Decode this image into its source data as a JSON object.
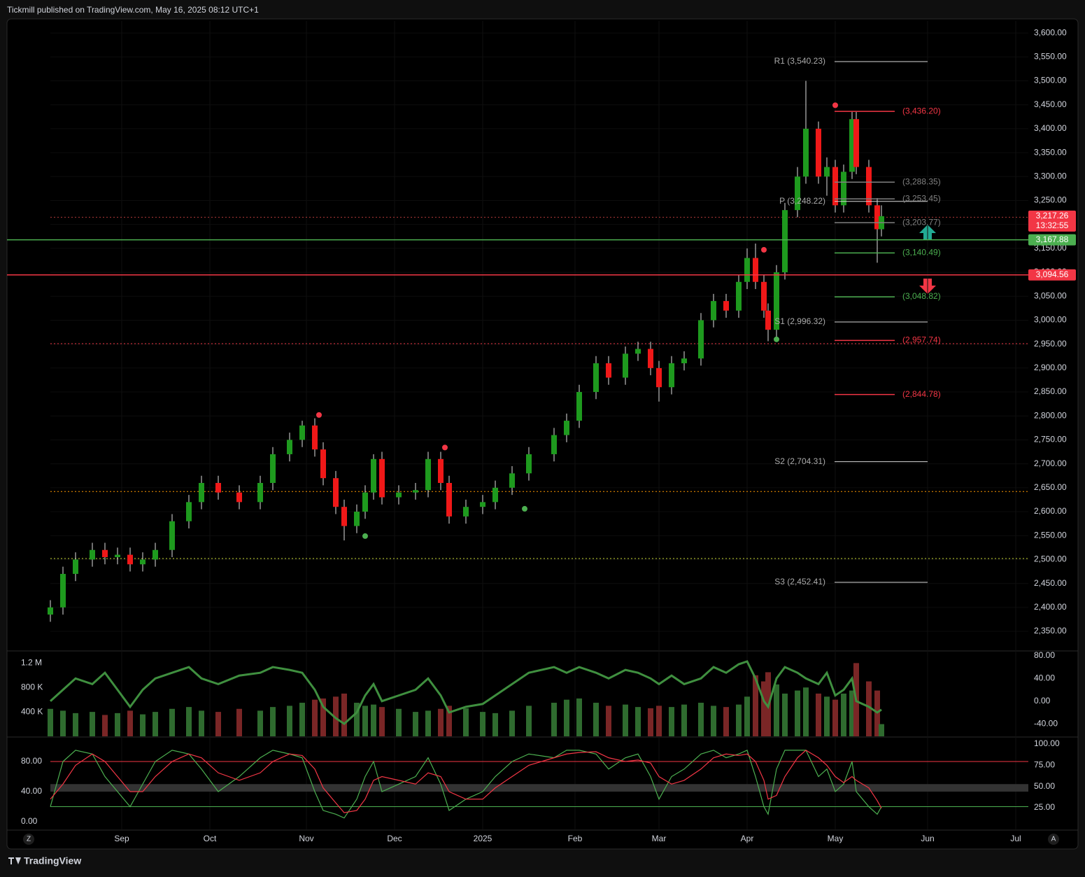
{
  "header": "Tickmill published on TradingView.com, May 16, 2025 08:12 UTC+1",
  "footer": "TradingView",
  "scale_buttons": {
    "left": "Z",
    "right": "A"
  },
  "chart_data": [
    {
      "type": "candlestick",
      "x": [
        0,
        3,
        6,
        10,
        13,
        16,
        19,
        22,
        25,
        29,
        33,
        36,
        40,
        45,
        50,
        53,
        57,
        60,
        63,
        65,
        68,
        70,
        73,
        75,
        77,
        79,
        83,
        87,
        90,
        93,
        95,
        99,
        103,
        106,
        110,
        114,
        120,
        123,
        126,
        130,
        133,
        137,
        140,
        143,
        145,
        148,
        151,
        155,
        158,
        161,
        164,
        166,
        168,
        170,
        171,
        173,
        175,
        178,
        180,
        183,
        185,
        187,
        189,
        191,
        192,
        195,
        197,
        198
      ],
      "open": [
        2385,
        2400,
        2470,
        2500,
        2520,
        2505,
        2510,
        2490,
        2500,
        2520,
        2580,
        2620,
        2660,
        2640,
        2620,
        2660,
        2720,
        2750,
        2780,
        2730,
        2670,
        2610,
        2570,
        2600,
        2640,
        2710,
        2630,
        2640,
        2645,
        2710,
        2660,
        2590,
        2610,
        2620,
        2650,
        2680,
        2720,
        2760,
        2790,
        2850,
        2910,
        2880,
        2930,
        2940,
        2900,
        2860,
        2910,
        2920,
        3000,
        3040,
        3020,
        3080,
        3130,
        3080,
        3020,
        2980,
        3100,
        3230,
        3300,
        3400,
        3300,
        3320,
        3240,
        3310,
        3420,
        3320,
        3240,
        3190
      ],
      "high": [
        2415,
        2485,
        2515,
        2535,
        2535,
        2525,
        2525,
        2515,
        2535,
        2595,
        2635,
        2675,
        2675,
        2655,
        2675,
        2735,
        2765,
        2790,
        2795,
        2745,
        2685,
        2625,
        2615,
        2655,
        2720,
        2725,
        2655,
        2660,
        2725,
        2725,
        2675,
        2625,
        2635,
        2665,
        2695,
        2735,
        2775,
        2805,
        2865,
        2925,
        2925,
        2945,
        2955,
        2955,
        2915,
        2925,
        2935,
        3015,
        3055,
        3055,
        3095,
        3150,
        3160,
        3095,
        3035,
        3115,
        3245,
        3320,
        3500,
        3415,
        3340,
        3335,
        3325,
        3435,
        3435,
        3335,
        3255,
        3240
      ],
      "low": [
        2370,
        2385,
        2455,
        2485,
        2490,
        2490,
        2475,
        2475,
        2485,
        2505,
        2565,
        2605,
        2625,
        2605,
        2605,
        2645,
        2705,
        2735,
        2715,
        2655,
        2595,
        2540,
        2555,
        2585,
        2625,
        2615,
        2615,
        2625,
        2630,
        2645,
        2575,
        2575,
        2595,
        2605,
        2635,
        2665,
        2705,
        2745,
        2775,
        2835,
        2865,
        2865,
        2915,
        2885,
        2830,
        2845,
        2895,
        2905,
        2985,
        3005,
        3005,
        3065,
        3065,
        3005,
        2956,
        2965,
        3085,
        3215,
        3285,
        3285,
        3260,
        3225,
        3225,
        3295,
        3305,
        3225,
        3120,
        3175
      ],
      "close": [
        2400,
        2470,
        2500,
        2520,
        2505,
        2510,
        2490,
        2500,
        2520,
        2580,
        2620,
        2660,
        2640,
        2620,
        2660,
        2720,
        2750,
        2780,
        2730,
        2670,
        2610,
        2570,
        2600,
        2640,
        2710,
        2630,
        2640,
        2645,
        2710,
        2660,
        2590,
        2610,
        2620,
        2650,
        2680,
        2720,
        2760,
        2790,
        2850,
        2910,
        2880,
        2930,
        2940,
        2900,
        2860,
        2910,
        2920,
        3000,
        3040,
        3020,
        3080,
        3130,
        3080,
        3020,
        2980,
        3100,
        3230,
        3300,
        3400,
        3300,
        3320,
        3240,
        3310,
        3420,
        3320,
        3240,
        3190,
        3217.26
      ],
      "up_color": "#1e9a1e",
      "down_color": "#f01818",
      "xlim": [
        0,
        233
      ],
      "xticks": [
        {
          "value": 17,
          "label": "Sep"
        },
        {
          "value": 38,
          "label": "Oct"
        },
        {
          "value": 61,
          "label": "Nov"
        },
        {
          "value": 82,
          "label": "Dec"
        },
        {
          "value": 103,
          "label": "2025"
        },
        {
          "value": 125,
          "label": "Feb"
        },
        {
          "value": 145,
          "label": "Mar"
        },
        {
          "value": 166,
          "label": "Apr"
        },
        {
          "value": 187,
          "label": "May"
        },
        {
          "value": 209,
          "label": "Jun"
        },
        {
          "value": 230,
          "label": "Jul"
        }
      ],
      "ylim": [
        2312,
        3625
      ],
      "yticks": [
        {
          "value": 2350,
          "label": "2,350.00"
        },
        {
          "value": 2400,
          "label": "2,400.00"
        },
        {
          "value": 2450,
          "label": "2,450.00"
        },
        {
          "value": 2500,
          "label": "2,500.00"
        },
        {
          "value": 2550,
          "label": "2,550.00"
        },
        {
          "value": 2600,
          "label": "2,600.00"
        },
        {
          "value": 2650,
          "label": "2,650.00"
        },
        {
          "value": 2700,
          "label": "2,700.00"
        },
        {
          "value": 2750,
          "label": "2,750.00"
        },
        {
          "value": 2800,
          "label": "2,800.00"
        },
        {
          "value": 2850,
          "label": "2,850.00"
        },
        {
          "value": 2900,
          "label": "2,900.00"
        },
        {
          "value": 2950,
          "label": "2,950.00"
        },
        {
          "value": 3000,
          "label": "3,000.00"
        },
        {
          "value": 3050,
          "label": "3,050.00"
        },
        {
          "value": 3100,
          "label": "3,100.00"
        },
        {
          "value": 3150,
          "label": "3,150.00"
        },
        {
          "value": 3200,
          "label": "3,200.00"
        },
        {
          "value": 3250,
          "label": "3,250.00"
        },
        {
          "value": 3300,
          "label": "3,300.00"
        },
        {
          "value": 3350,
          "label": "3,350.00"
        },
        {
          "value": 3400,
          "label": "3,400.00"
        },
        {
          "value": 3450,
          "label": "3,450.00"
        },
        {
          "value": 3500,
          "label": "3,500.00"
        },
        {
          "value": 3550,
          "label": "3,550.00"
        },
        {
          "value": 3600,
          "label": "3,600.00"
        }
      ],
      "levels": [
        {
          "label": "R1 (3,540.23)",
          "value": 3540.23,
          "color": "#d8d8d8",
          "kind": "pivot"
        },
        {
          "label": "P (3,248.22)",
          "value": 3248.22,
          "color": "#d8d8d8",
          "kind": "pivot"
        },
        {
          "label": "S1 (2,996.32)",
          "value": 2996.32,
          "color": "#d8d8d8",
          "kind": "pivot"
        },
        {
          "label": "S2 (2,704.31)",
          "value": 2704.31,
          "color": "#d8d8d8",
          "kind": "pivot"
        },
        {
          "label": "S3 (2,452.41)",
          "value": 2452.41,
          "color": "#d8d8d8",
          "kind": "pivot"
        },
        {
          "label": "(3,436.20)",
          "value": 3436.2,
          "color": "#f23645",
          "kind": "level"
        },
        {
          "label": "(3,288.35)",
          "value": 3288.35,
          "color": "#808080",
          "kind": "level"
        },
        {
          "label": "(3,253.45)",
          "value": 3253.45,
          "color": "#808080",
          "kind": "level"
        },
        {
          "label": "(3,203.77)",
          "value": 3203.77,
          "color": "#808080",
          "kind": "level"
        },
        {
          "label": "(3,140.49)",
          "value": 3140.49,
          "color": "#4caf50",
          "kind": "level"
        },
        {
          "label": "(3,048.82)",
          "value": 3048.82,
          "color": "#4caf50",
          "kind": "level"
        },
        {
          "label": "(2,957.74)",
          "value": 2957.74,
          "color": "#f23645",
          "kind": "level"
        },
        {
          "label": "(2,844.78)",
          "value": 2844.78,
          "color": "#f23645",
          "kind": "level"
        }
      ],
      "dotted_levels": [
        {
          "value": 3215,
          "color": "#b33a3a"
        },
        {
          "value": 2951,
          "color": "#f23645"
        },
        {
          "value": 2642,
          "color": "#ff9800"
        },
        {
          "value": 2502,
          "color": "#cddc39"
        }
      ],
      "price_tags": [
        {
          "value": 3217.26,
          "label": "3,217.26",
          "sublabel": "13:32:55",
          "color": "#f23645",
          "line": false
        },
        {
          "value": 3167.88,
          "label": "3,167.88",
          "color": "#4caf50",
          "line": true
        },
        {
          "value": 3094.56,
          "label": "3,094.56",
          "color": "#f23645",
          "line": true
        }
      ],
      "signals": {
        "x": [
          64,
          94,
          170,
          187,
          75,
          113,
          173
        ],
        "y": [
          2802,
          2734,
          3147,
          3449,
          2549,
          2606,
          2960
        ],
        "colors": [
          "#f23645",
          "#f23645",
          "#f23645",
          "#f23645",
          "#4caf50",
          "#4caf50",
          "#4caf50"
        ]
      }
    },
    {
      "type": "volume",
      "values": [
        450000,
        420000,
        380000,
        400000,
        350000,
        380000,
        420000,
        360000,
        400000,
        450000,
        480000,
        420000,
        400000,
        450000,
        420000,
        480000,
        500000,
        550000,
        600000,
        620000,
        650000,
        700000,
        550000,
        500000,
        520000,
        480000,
        450000,
        400000,
        420000,
        450000,
        500000,
        460000,
        400000,
        380000,
        420000,
        500000,
        550000,
        600000,
        620000,
        550000,
        500000,
        520000,
        480000,
        460000,
        500000,
        480000,
        520000,
        550000,
        500000,
        480000,
        520000,
        650000,
        1000000,
        900000,
        1050000,
        850000,
        700000,
        750000,
        800000,
        700000,
        650000,
        600000,
        700000,
        750000,
        1200000,
        900000,
        750000,
        200000
      ],
      "up_color": "#2f6b2f",
      "down_color": "#7a2626",
      "ylim": [
        0,
        1376000
      ],
      "yticks": [
        {
          "value": 400000,
          "label": "400 K"
        },
        {
          "value": 800000,
          "label": "800 K"
        },
        {
          "value": 1200000,
          "label": "1.2 M"
        }
      ],
      "oscillator": {
        "color": "#3f8f3f",
        "values": [
          0,
          20,
          40,
          30,
          50,
          20,
          -10,
          20,
          40,
          50,
          60,
          40,
          30,
          45,
          50,
          60,
          55,
          50,
          20,
          -10,
          -30,
          -40,
          -20,
          10,
          30,
          0,
          10,
          20,
          40,
          10,
          -20,
          -10,
          -5,
          10,
          30,
          50,
          60,
          50,
          60,
          50,
          40,
          55,
          50,
          40,
          30,
          45,
          30,
          40,
          60,
          50,
          65,
          70,
          40,
          0,
          -10,
          40,
          60,
          50,
          40,
          30,
          50,
          10,
          20,
          40,
          0,
          -10,
          -20,
          -15
        ]
      },
      "y2lim": [
        -62,
        86
      ],
      "y2ticks": [
        {
          "value": -40,
          "label": "-40.00"
        },
        {
          "value": 0,
          "label": "0.00"
        },
        {
          "value": 40,
          "label": "40.00"
        },
        {
          "value": 80,
          "label": "80.00"
        }
      ]
    },
    {
      "type": "stochastic",
      "series": [
        {
          "color": "#4caf50",
          "values": [
            20,
            80,
            95,
            90,
            60,
            40,
            20,
            50,
            80,
            95,
            90,
            70,
            40,
            60,
            85,
            95,
            90,
            85,
            40,
            15,
            10,
            5,
            30,
            60,
            80,
            40,
            50,
            60,
            85,
            50,
            15,
            30,
            40,
            60,
            80,
            90,
            85,
            95,
            95,
            90,
            70,
            85,
            90,
            60,
            30,
            60,
            70,
            90,
            95,
            85,
            90,
            95,
            60,
            20,
            10,
            70,
            95,
            95,
            95,
            60,
            70,
            40,
            50,
            80,
            40,
            20,
            10,
            20
          ]
        },
        {
          "color": "#f23645",
          "values": [
            30,
            50,
            75,
            90,
            80,
            60,
            40,
            40,
            60,
            80,
            90,
            85,
            65,
            55,
            65,
            80,
            90,
            88,
            70,
            45,
            25,
            12,
            15,
            30,
            55,
            60,
            55,
            50,
            65,
            60,
            40,
            30,
            30,
            45,
            60,
            75,
            85,
            90,
            92,
            93,
            85,
            80,
            82,
            78,
            60,
            50,
            55,
            70,
            85,
            90,
            88,
            90,
            80,
            55,
            30,
            35,
            60,
            85,
            95,
            85,
            75,
            60,
            52,
            60,
            55,
            45,
            28,
            18
          ]
        }
      ],
      "ylim": [
        -10.2,
        110.7
      ],
      "yticks": [
        {
          "value": 0,
          "label": "0.00"
        },
        {
          "value": 40,
          "label": "40.00"
        },
        {
          "value": 80,
          "label": "80.00"
        }
      ],
      "y2lim": [
        -0.6,
        106.6
      ],
      "y2ticks": [
        {
          "value": 25,
          "label": "25.00"
        },
        {
          "value": 50,
          "label": "50.00"
        },
        {
          "value": 75,
          "label": "75.00"
        },
        {
          "value": 100,
          "label": "100.00"
        }
      ],
      "upper": 80,
      "lower": 20,
      "band": [
        40,
        50
      ]
    }
  ]
}
